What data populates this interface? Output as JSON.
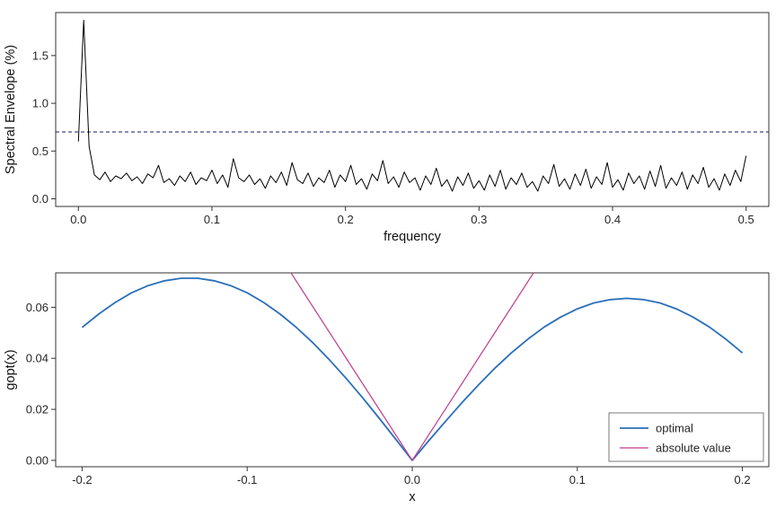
{
  "page": {
    "background": "#ffffff"
  },
  "chart_data": [
    {
      "type": "line",
      "title": "",
      "xlabel": "frequency",
      "ylabel": "Spectral Envelope (%)",
      "xlim": [
        -0.017,
        0.517
      ],
      "ylim": [
        -0.08,
        1.95
      ],
      "grid": false,
      "box_color": "#333333",
      "xticks": {
        "values": [
          0,
          0.1,
          0.2,
          0.3,
          0.4,
          0.5
        ],
        "labels": [
          "0.0",
          "0.1",
          "0.2",
          "0.3",
          "0.4",
          "0.5"
        ]
      },
      "yticks": {
        "values": [
          0,
          0.5,
          1.0,
          1.5
        ],
        "labels": [
          "0.0",
          "0.5",
          "1.0",
          "1.5"
        ]
      },
      "hline": {
        "y": 0.7,
        "color": "#1a1a6e",
        "dash": "4,3"
      },
      "series": [
        {
          "name": "spectral envelope",
          "color": "#000000",
          "width": 1,
          "x_start": 0,
          "x_step": 0.004,
          "values": [
            0.6,
            1.87,
            0.55,
            0.25,
            0.2,
            0.28,
            0.18,
            0.24,
            0.21,
            0.27,
            0.19,
            0.23,
            0.16,
            0.26,
            0.22,
            0.35,
            0.17,
            0.21,
            0.14,
            0.24,
            0.18,
            0.28,
            0.15,
            0.22,
            0.19,
            0.3,
            0.16,
            0.25,
            0.12,
            0.42,
            0.22,
            0.18,
            0.25,
            0.15,
            0.21,
            0.11,
            0.24,
            0.17,
            0.28,
            0.14,
            0.38,
            0.2,
            0.16,
            0.27,
            0.13,
            0.22,
            0.17,
            0.3,
            0.12,
            0.25,
            0.18,
            0.35,
            0.15,
            0.21,
            0.1,
            0.26,
            0.19,
            0.4,
            0.16,
            0.23,
            0.12,
            0.28,
            0.17,
            0.22,
            0.09,
            0.24,
            0.15,
            0.32,
            0.13,
            0.2,
            0.08,
            0.23,
            0.14,
            0.27,
            0.11,
            0.19,
            0.09,
            0.25,
            0.13,
            0.3,
            0.1,
            0.22,
            0.15,
            0.27,
            0.12,
            0.18,
            0.08,
            0.24,
            0.16,
            0.36,
            0.13,
            0.21,
            0.1,
            0.26,
            0.14,
            0.31,
            0.11,
            0.23,
            0.15,
            0.38,
            0.12,
            0.2,
            0.09,
            0.27,
            0.16,
            0.24,
            0.1,
            0.29,
            0.13,
            0.35,
            0.11,
            0.22,
            0.14,
            0.28,
            0.1,
            0.25,
            0.16,
            0.33,
            0.12,
            0.21,
            0.09,
            0.26,
            0.14,
            0.3,
            0.18,
            0.45
          ]
        }
      ]
    },
    {
      "type": "line",
      "title": "",
      "xlabel": "x",
      "ylabel": "gopt(x)",
      "xlim": [
        -0.216,
        0.216
      ],
      "ylim": [
        -0.0025,
        0.0735
      ],
      "grid": false,
      "box_color": "#333333",
      "xticks": {
        "values": [
          -0.2,
          -0.1,
          0,
          0.1,
          0.2
        ],
        "labels": [
          "-0.2",
          "-0.1",
          "0.0",
          "0.1",
          "0.2"
        ]
      },
      "yticks": {
        "values": [
          0,
          0.02,
          0.04,
          0.06
        ],
        "labels": [
          "0.00",
          "0.02",
          "0.04",
          "0.06"
        ]
      },
      "series": [
        {
          "name": "optimal",
          "color": "#2a6fba",
          "width": 1.8,
          "x_start": -0.2,
          "x_step": 0.01,
          "values": [
            0.0521,
            0.0573,
            0.0619,
            0.0657,
            0.0685,
            0.0704,
            0.0714,
            0.0714,
            0.0704,
            0.0685,
            0.0657,
            0.0619,
            0.0573,
            0.052,
            0.046,
            0.0393,
            0.0321,
            0.0245,
            0.0165,
            0.0083,
            0.0,
            0.0077,
            0.0152,
            0.0225,
            0.0295,
            0.0361,
            0.0421,
            0.0475,
            0.0523,
            0.0562,
            0.0594,
            0.0617,
            0.063,
            0.0635,
            0.063,
            0.0617,
            0.0594,
            0.0562,
            0.0523,
            0.0475,
            0.0421
          ]
        },
        {
          "name": "absolute value",
          "color": "#c13a8c",
          "width": 1.2,
          "points": [
            [
              -0.08,
              0.08
            ],
            [
              0,
              0
            ],
            [
              0.08,
              0.08
            ]
          ]
        }
      ],
      "legend": {
        "position": "bottom-right",
        "border_color": "#7a7a7a",
        "entries": [
          {
            "label": "optimal",
            "color": "#2a6fba",
            "width": 1.8
          },
          {
            "label": "absolute value",
            "color": "#c13a8c",
            "width": 1.2
          }
        ]
      }
    }
  ]
}
